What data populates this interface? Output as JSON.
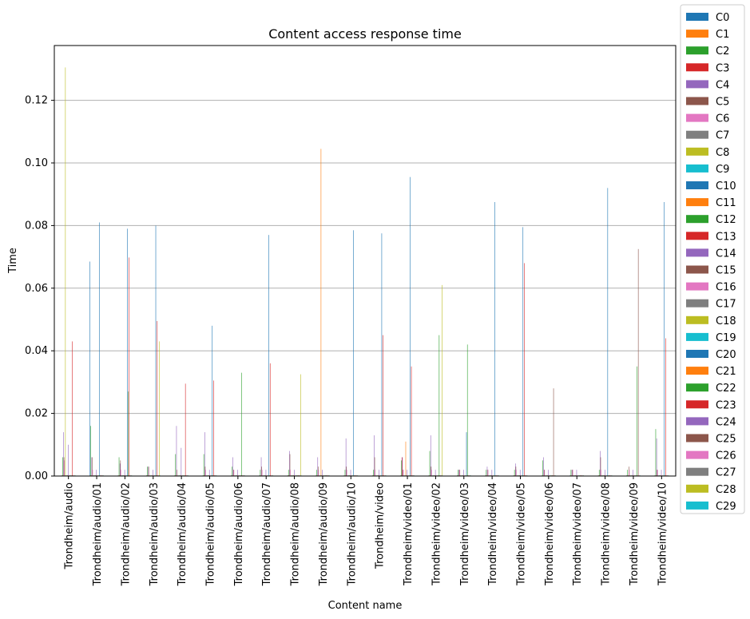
{
  "chart_data": {
    "type": "bar",
    "title": "Content access response time",
    "xlabel": "Content name",
    "ylabel": "Time",
    "ylim": [
      0,
      0.1375
    ],
    "yticks": [
      "0.00",
      "0.02",
      "0.04",
      "0.06",
      "0.08",
      "0.10",
      "0.12"
    ],
    "grid": "y",
    "legend_position": "right-outside",
    "categories": [
      "Trondheim/audio",
      "Trondheim/audio/01",
      "Trondheim/audio/02",
      "Trondheim/audio/03",
      "Trondheim/audio/04",
      "Trondheim/audio/05",
      "Trondheim/audio/06",
      "Trondheim/audio/07",
      "Trondheim/audio/08",
      "Trondheim/audio/09",
      "Trondheim/audio/10",
      "Trondheim/video",
      "Trondheim/video/01",
      "Trondheim/video/02",
      "Trondheim/video/03",
      "Trondheim/video/04",
      "Trondheim/video/05",
      "Trondheim/video/06",
      "Trondheim/video/07",
      "Trondheim/video/08",
      "Trondheim/video/09",
      "Trondheim/video/10"
    ],
    "series": [
      {
        "name": "C0",
        "color": "#1f77b4",
        "values": [
          0.0002,
          0.0685,
          0.0002,
          0.0002,
          0.0002,
          0.0002,
          0.0002,
          0.0002,
          0.0002,
          0.0002,
          0.0002,
          0.0002,
          0.0002,
          0.0002,
          0.0002,
          0.0002,
          0.0002,
          0.0002,
          0.0002,
          0.0002,
          0.0002,
          0.0002
        ]
      },
      {
        "name": "C1",
        "color": "#ff7f0e",
        "values": [
          0.0002,
          0.0002,
          0.0002,
          0.0002,
          0.0002,
          0.0002,
          0.0002,
          0.0002,
          0.0002,
          0.0002,
          0.0002,
          0.0002,
          0.0002,
          0.0002,
          0.0002,
          0.0002,
          0.0002,
          0.0002,
          0.0002,
          0.0002,
          0.0002,
          0.0002
        ]
      },
      {
        "name": "C2",
        "color": "#2ca02c",
        "values": [
          0.006,
          0.016,
          0.006,
          0.003,
          0.007,
          0.007,
          0.003,
          0.002,
          0.002,
          0.002,
          0.002,
          0.002,
          0.005,
          0.008,
          0.002,
          0.002,
          0.002,
          0.005,
          0.002,
          0.002,
          0.002,
          0.015
        ]
      },
      {
        "name": "C3",
        "color": "#d62728",
        "values": [
          0.0002,
          0.0002,
          0.0002,
          0.0002,
          0.0002,
          0.0002,
          0.0002,
          0.0002,
          0.0002,
          0.0002,
          0.0002,
          0.0002,
          0.006,
          0.0002,
          0.0002,
          0.0002,
          0.0002,
          0.0002,
          0.0002,
          0.0002,
          0.0002,
          0.0002
        ]
      },
      {
        "name": "C4",
        "color": "#9467bd",
        "values": [
          0.014,
          0.006,
          0.004,
          0.003,
          0.016,
          0.014,
          0.006,
          0.006,
          0.008,
          0.006,
          0.012,
          0.013,
          0.006,
          0.013,
          0.002,
          0.003,
          0.004,
          0.006,
          0.002,
          0.008,
          0.0002,
          0.012
        ]
      },
      {
        "name": "C5",
        "color": "#8c564b",
        "values": [
          0.006,
          0.006,
          0.005,
          0.003,
          0.002,
          0.003,
          0.002,
          0.003,
          0.007,
          0.003,
          0.003,
          0.006,
          0.002,
          0.003,
          0.002,
          0.002,
          0.003,
          0.002,
          0.002,
          0.006,
          0.003,
          0.002
        ]
      },
      {
        "name": "C6",
        "color": "#e377c2",
        "values": [
          0.005,
          0.002,
          0.002,
          0.0002,
          0.0002,
          0.002,
          0.002,
          0.002,
          0.002,
          0.002,
          0.002,
          0.002,
          0.002,
          0.002,
          0.002,
          0.002,
          0.002,
          0.002,
          0.002,
          0.002,
          0.002,
          0.002
        ]
      },
      {
        "name": "C7",
        "color": "#7f7f7f",
        "values": [
          0.0002,
          0.0002,
          0.0002,
          0.0002,
          0.0002,
          0.0002,
          0.0002,
          0.0002,
          0.0002,
          0.0002,
          0.0002,
          0.0002,
          0.0002,
          0.0002,
          0.0002,
          0.0002,
          0.0002,
          0.0002,
          0.0002,
          0.0002,
          0.0002,
          0.0002
        ]
      },
      {
        "name": "C8",
        "color": "#bcbd22",
        "values": [
          0.1305,
          0.0002,
          0.0002,
          0.0002,
          0.0002,
          0.0002,
          0.0002,
          0.0002,
          0.0002,
          0.0002,
          0.0002,
          0.0002,
          0.0002,
          0.0002,
          0.0002,
          0.0002,
          0.0002,
          0.0002,
          0.0002,
          0.0002,
          0.0002,
          0.0002
        ]
      },
      {
        "name": "C9",
        "color": "#17becf",
        "values": [
          0.0002,
          0.0002,
          0.0002,
          0.0002,
          0.0002,
          0.0002,
          0.0002,
          0.0002,
          0.0002,
          0.0002,
          0.0002,
          0.0002,
          0.0002,
          0.0002,
          0.0002,
          0.0002,
          0.0002,
          0.0002,
          0.0002,
          0.0002,
          0.0002,
          0.0002
        ]
      },
      {
        "name": "C10",
        "color": "#1f77b4",
        "values": [
          0.0002,
          0.0002,
          0.0002,
          0.0002,
          0.0002,
          0.0002,
          0.0002,
          0.0002,
          0.0002,
          0.0002,
          0.0002,
          0.0002,
          0.0002,
          0.0002,
          0.0002,
          0.0002,
          0.0002,
          0.0002,
          0.0002,
          0.0002,
          0.0002,
          0.0002
        ]
      },
      {
        "name": "C11",
        "color": "#ff7f0e",
        "values": [
          0.0002,
          0.0002,
          0.0002,
          0.0002,
          0.0002,
          0.0002,
          0.0002,
          0.0002,
          0.0002,
          0.1045,
          0.0002,
          0.0002,
          0.011,
          0.0002,
          0.0002,
          0.0002,
          0.0002,
          0.0002,
          0.0002,
          0.0002,
          0.0002,
          0.0002
        ]
      },
      {
        "name": "C12",
        "color": "#2ca02c",
        "values": [
          0.0002,
          0.0002,
          0.0002,
          0.0002,
          0.0002,
          0.0002,
          0.0002,
          0.0002,
          0.0002,
          0.0002,
          0.0002,
          0.0002,
          0.0002,
          0.0002,
          0.0002,
          0.0002,
          0.0002,
          0.0002,
          0.0002,
          0.0002,
          0.0002,
          0.0002
        ]
      },
      {
        "name": "C13",
        "color": "#d62728",
        "values": [
          0.0002,
          0.0002,
          0.0002,
          0.0002,
          0.0002,
          0.0002,
          0.0002,
          0.0002,
          0.0002,
          0.0002,
          0.0002,
          0.0002,
          0.0002,
          0.0002,
          0.0002,
          0.0002,
          0.0002,
          0.0002,
          0.0002,
          0.0002,
          0.0002,
          0.0002
        ]
      },
      {
        "name": "C14",
        "color": "#9467bd",
        "values": [
          0.01,
          0.002,
          0.002,
          0.002,
          0.009,
          0.002,
          0.002,
          0.002,
          0.002,
          0.002,
          0.002,
          0.002,
          0.002,
          0.002,
          0.002,
          0.002,
          0.002,
          0.002,
          0.002,
          0.002,
          0.002,
          0.002
        ]
      },
      {
        "name": "C15",
        "color": "#8c564b",
        "values": [
          0.0002,
          0.0002,
          0.0002,
          0.0002,
          0.0002,
          0.0002,
          0.0002,
          0.0002,
          0.0002,
          0.0002,
          0.0002,
          0.0002,
          0.0002,
          0.0002,
          0.0002,
          0.0002,
          0.0002,
          0.0002,
          0.0002,
          0.0002,
          0.0002,
          0.0002
        ]
      },
      {
        "name": "C16",
        "color": "#e377c2",
        "values": [
          0.0002,
          0.0002,
          0.0002,
          0.0002,
          0.0002,
          0.0002,
          0.0002,
          0.0002,
          0.0002,
          0.0002,
          0.0002,
          0.0002,
          0.0002,
          0.0002,
          0.0002,
          0.0002,
          0.0002,
          0.0002,
          0.0002,
          0.0002,
          0.0002,
          0.0002
        ]
      },
      {
        "name": "C17",
        "color": "#7f7f7f",
        "values": [
          0.0002,
          0.0002,
          0.0002,
          0.0002,
          0.0002,
          0.0002,
          0.0002,
          0.0002,
          0.0002,
          0.0002,
          0.0002,
          0.0002,
          0.0002,
          0.0002,
          0.0002,
          0.0002,
          0.0002,
          0.0002,
          0.0002,
          0.0002,
          0.0002,
          0.0002
        ]
      },
      {
        "name": "C18",
        "color": "#bcbd22",
        "values": [
          0.0002,
          0.0002,
          0.0002,
          0.0002,
          0.0002,
          0.0002,
          0.0002,
          0.0002,
          0.0002,
          0.0002,
          0.0002,
          0.0002,
          0.0002,
          0.0002,
          0.0002,
          0.0002,
          0.0002,
          0.0002,
          0.0002,
          0.0002,
          0.0002,
          0.0002
        ]
      },
      {
        "name": "C19",
        "color": "#17becf",
        "values": [
          0.0002,
          0.0002,
          0.0002,
          0.0002,
          0.0002,
          0.0002,
          0.0002,
          0.0002,
          0.0002,
          0.0002,
          0.0002,
          0.0002,
          0.0002,
          0.0002,
          0.0002,
          0.0002,
          0.0002,
          0.0002,
          0.0002,
          0.0002,
          0.0002,
          0.0002
        ]
      },
      {
        "name": "C20",
        "color": "#1f77b4",
        "values": [
          0.0002,
          0.081,
          0.079,
          0.08,
          0.0002,
          0.048,
          0.0002,
          0.077,
          0.0002,
          0.0002,
          0.0785,
          0.0775,
          0.0955,
          0.0002,
          0.014,
          0.0875,
          0.0795,
          0.0002,
          0.0002,
          0.092,
          0.0002,
          0.0875
        ]
      },
      {
        "name": "C21",
        "color": "#ff7f0e",
        "values": [
          0.0002,
          0.0002,
          0.0002,
          0.0002,
          0.0002,
          0.0002,
          0.0002,
          0.0002,
          0.0002,
          0.0002,
          0.0002,
          0.0002,
          0.0002,
          0.0002,
          0.0002,
          0.0002,
          0.0002,
          0.0002,
          0.0002,
          0.0002,
          0.0002,
          0.0002
        ]
      },
      {
        "name": "C22",
        "color": "#2ca02c",
        "values": [
          0.0002,
          0.0002,
          0.027,
          0.0002,
          0.0002,
          0.0002,
          0.033,
          0.0002,
          0.0002,
          0.0002,
          0.0002,
          0.0002,
          0.0002,
          0.045,
          0.042,
          0.0002,
          0.0002,
          0.0002,
          0.0002,
          0.0002,
          0.035,
          0.0002
        ]
      },
      {
        "name": "C23",
        "color": "#d62728",
        "values": [
          0.043,
          0.0002,
          0.0698,
          0.0495,
          0.0295,
          0.0305,
          0.0002,
          0.036,
          0.0002,
          0.0002,
          0.0002,
          0.045,
          0.035,
          0.0002,
          0.0002,
          0.0002,
          0.068,
          0.0002,
          0.0002,
          0.0002,
          0.0002,
          0.044
        ]
      },
      {
        "name": "C24",
        "color": "#9467bd",
        "values": [
          0.0002,
          0.0002,
          0.0002,
          0.0002,
          0.0002,
          0.0002,
          0.0002,
          0.0002,
          0.0002,
          0.0002,
          0.0002,
          0.0002,
          0.0002,
          0.0002,
          0.0002,
          0.0002,
          0.0002,
          0.0002,
          0.0002,
          0.0002,
          0.0002,
          0.0002
        ]
      },
      {
        "name": "C25",
        "color": "#8c564b",
        "values": [
          0.0002,
          0.0002,
          0.0002,
          0.0002,
          0.0002,
          0.0002,
          0.0002,
          0.0002,
          0.0002,
          0.0002,
          0.0002,
          0.0002,
          0.0002,
          0.0002,
          0.0002,
          0.0002,
          0.0002,
          0.028,
          0.0002,
          0.0002,
          0.0725,
          0.0002
        ]
      },
      {
        "name": "C26",
        "color": "#e377c2",
        "values": [
          0.0002,
          0.0002,
          0.0002,
          0.0002,
          0.0002,
          0.0002,
          0.0002,
          0.0002,
          0.0002,
          0.0002,
          0.0002,
          0.0002,
          0.0002,
          0.0002,
          0.0002,
          0.0002,
          0.0002,
          0.0002,
          0.0002,
          0.0002,
          0.0002,
          0.0002
        ]
      },
      {
        "name": "C27",
        "color": "#7f7f7f",
        "values": [
          0.0002,
          0.0002,
          0.0002,
          0.0002,
          0.0002,
          0.0002,
          0.0002,
          0.0002,
          0.0002,
          0.0002,
          0.0002,
          0.0002,
          0.0002,
          0.0002,
          0.0002,
          0.0002,
          0.0002,
          0.0002,
          0.0002,
          0.0002,
          0.0002,
          0.0002
        ]
      },
      {
        "name": "C28",
        "color": "#bcbd22",
        "values": [
          0.0002,
          0.0002,
          0.0002,
          0.043,
          0.0002,
          0.0002,
          0.0002,
          0.0002,
          0.0325,
          0.0002,
          0.0002,
          0.0002,
          0.0002,
          0.061,
          0.0002,
          0.0002,
          0.0002,
          0.0002,
          0.0002,
          0.0002,
          0.0002,
          0.0002
        ]
      },
      {
        "name": "C29",
        "color": "#17becf",
        "values": [
          0.0002,
          0.0002,
          0.0002,
          0.0002,
          0.0002,
          0.0002,
          0.0002,
          0.0002,
          0.0002,
          0.0002,
          0.0002,
          0.0002,
          0.0002,
          0.0002,
          0.0002,
          0.0002,
          0.0002,
          0.0002,
          0.0002,
          0.0002,
          0.0002,
          0.0002
        ]
      }
    ]
  }
}
